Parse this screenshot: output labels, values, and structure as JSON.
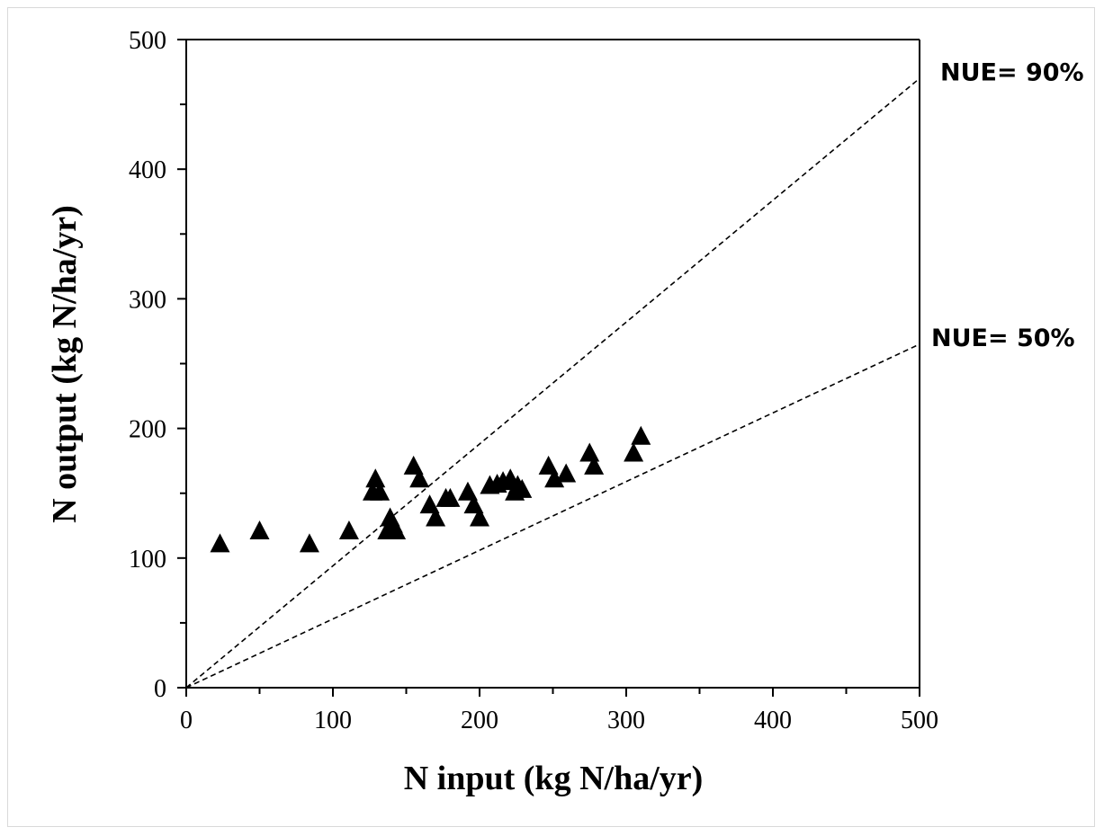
{
  "chart_data": {
    "type": "scatter",
    "xlabel": "N input (kg N/ha/yr)",
    "ylabel": "N output (kg N/ha/yr)",
    "xlim": [
      0,
      500
    ],
    "ylim": [
      0,
      500
    ],
    "xticks": [
      "0",
      "100",
      "200",
      "300",
      "400",
      "500"
    ],
    "yticks": [
      "0",
      "100",
      "200",
      "300",
      "400",
      "500"
    ],
    "grid": false,
    "marker": "triangle",
    "marker_color": "#000000",
    "points": [
      {
        "x": 23,
        "y": 110
      },
      {
        "x": 50,
        "y": 120
      },
      {
        "x": 84,
        "y": 110
      },
      {
        "x": 111,
        "y": 120
      },
      {
        "x": 127,
        "y": 150
      },
      {
        "x": 129,
        "y": 160
      },
      {
        "x": 132,
        "y": 150
      },
      {
        "x": 137,
        "y": 120
      },
      {
        "x": 139,
        "y": 130
      },
      {
        "x": 141,
        "y": 125
      },
      {
        "x": 143,
        "y": 120
      },
      {
        "x": 155,
        "y": 170
      },
      {
        "x": 159,
        "y": 160
      },
      {
        "x": 166,
        "y": 140
      },
      {
        "x": 170,
        "y": 130
      },
      {
        "x": 177,
        "y": 145
      },
      {
        "x": 180,
        "y": 145
      },
      {
        "x": 192,
        "y": 150
      },
      {
        "x": 196,
        "y": 140
      },
      {
        "x": 200,
        "y": 130
      },
      {
        "x": 207,
        "y": 155
      },
      {
        "x": 212,
        "y": 156
      },
      {
        "x": 216,
        "y": 158
      },
      {
        "x": 221,
        "y": 160
      },
      {
        "x": 224,
        "y": 150
      },
      {
        "x": 226,
        "y": 155
      },
      {
        "x": 229,
        "y": 152
      },
      {
        "x": 247,
        "y": 170
      },
      {
        "x": 251,
        "y": 160
      },
      {
        "x": 259,
        "y": 164
      },
      {
        "x": 275,
        "y": 180
      },
      {
        "x": 278,
        "y": 170
      },
      {
        "x": 305,
        "y": 180
      },
      {
        "x": 310,
        "y": 193
      }
    ],
    "reference_lines": [
      {
        "label": "NUE= 90%",
        "slope": 0.94,
        "style": "dashed"
      },
      {
        "label": "NUE= 50%",
        "slope": 0.53,
        "style": "dashed"
      }
    ]
  }
}
